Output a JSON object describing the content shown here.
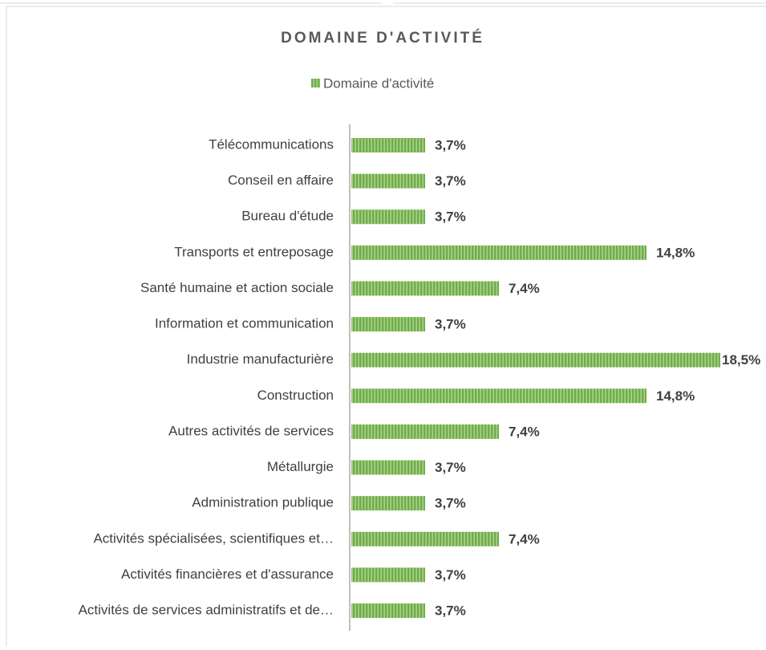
{
  "chart_data": {
    "type": "bar",
    "orientation": "horizontal",
    "title": "DOMAINE D'ACTIVITÉ",
    "categories": [
      "Télécommunications",
      "Conseil en affaire",
      "Bureau d'étude",
      "Transports et entreposage",
      "Santé humaine et action sociale",
      "Information et communication",
      "Industrie manufacturière",
      "Construction",
      "Autres activités de services",
      "Métallurgie",
      "Administration publique",
      "Activités spécialisées, scientifiques et…",
      "Activités financières et d'assurance",
      "Activités de services administratifs et de…"
    ],
    "series": [
      {
        "name": "Domaine d'activité",
        "color": "#70ad47",
        "values": [
          3.7,
          3.7,
          3.7,
          14.8,
          7.4,
          3.7,
          18.5,
          14.8,
          7.4,
          3.7,
          3.7,
          7.4,
          3.7,
          3.7
        ],
        "value_labels": [
          "3,7%",
          "3,7%",
          "3,7%",
          "14,8%",
          "7,4%",
          "3,7%",
          "18,5%",
          "14,8%",
          "7,4%",
          "3,7%",
          "3,7%",
          "7,4%",
          "3,7%",
          "3,7%"
        ]
      }
    ],
    "legend": "top"
  }
}
